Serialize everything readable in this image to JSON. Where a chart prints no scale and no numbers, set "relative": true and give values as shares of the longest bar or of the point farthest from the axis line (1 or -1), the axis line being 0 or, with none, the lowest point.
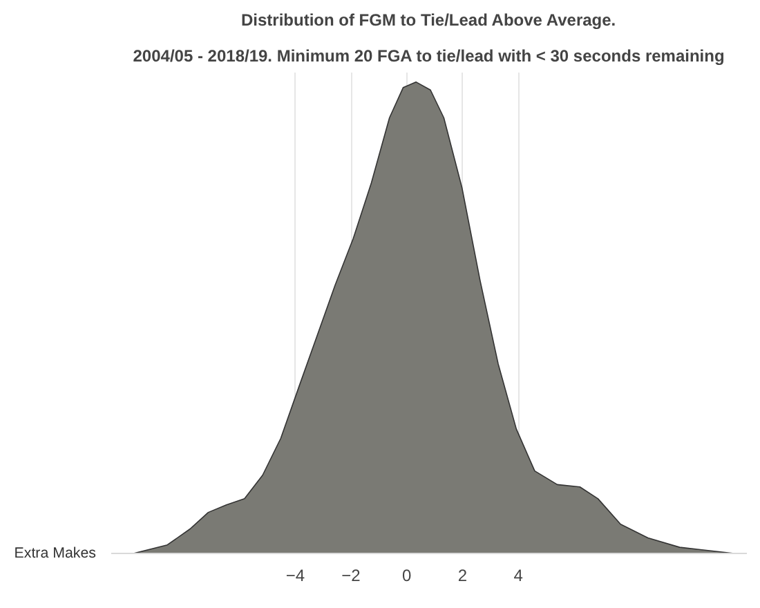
{
  "chart_data": {
    "type": "area",
    "title": "Distribution of FGM to Tie/Lead Above Average.",
    "subtitle": "2004/05 - 2018/19. Minimum 20 FGA to tie/lead with < 30 seconds remaining",
    "ylabel": "Extra Makes",
    "relative": true,
    "x": [
      -9.8,
      -8.59,
      -7.77,
      -7.12,
      -6.47,
      -5.82,
      -5.17,
      -4.52,
      -3.87,
      -3.22,
      -2.57,
      -1.92,
      -1.27,
      -0.62,
      -0.13,
      0.33,
      0.85,
      1.33,
      1.98,
      2.63,
      3.28,
      3.93,
      4.59,
      5.4,
      6.21,
      6.86,
      7.67,
      8.65,
      9.79,
      11.74
    ],
    "series": [
      {
        "color": "#7a7a74",
        "values": [
          0,
          0.018,
          0.052,
          0.087,
          0.103,
          0.116,
          0.166,
          0.244,
          0.353,
          0.461,
          0.569,
          0.668,
          0.786,
          0.924,
          0.988,
          1.0,
          0.983,
          0.924,
          0.776,
          0.579,
          0.402,
          0.264,
          0.175,
          0.146,
          0.141,
          0.116,
          0.062,
          0.033,
          0.013,
          0
        ]
      }
    ],
    "xlim": [
      -10.6,
      12.2
    ],
    "xticks": [
      -4,
      -2,
      0,
      2,
      4
    ],
    "grid": "x"
  }
}
